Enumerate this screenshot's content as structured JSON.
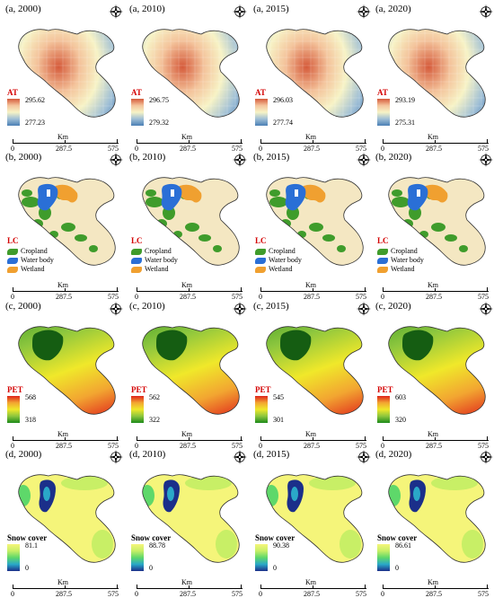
{
  "compass_icon": "north-arrow-compass",
  "scale": {
    "km_label": "Km",
    "labels": [
      "0",
      "287.5",
      "575"
    ]
  },
  "rows": [
    {
      "key": "a",
      "type": "at",
      "legend_title": "AT",
      "panels": [
        {
          "title": "(a, 2000)",
          "max": "295.62",
          "min": "277.23"
        },
        {
          "title": "(a, 2010)",
          "max": "296.75",
          "min": "279.32"
        },
        {
          "title": "(a, 2015)",
          "max": "296.03",
          "min": "277.74"
        },
        {
          "title": "(a, 2020)",
          "max": "293.19",
          "min": "275.31"
        }
      ]
    },
    {
      "key": "b",
      "type": "lc",
      "legend_title": "LC",
      "classes": [
        {
          "label": "Cropland",
          "color": "#3f9c2b"
        },
        {
          "label": "Water body",
          "color": "#2a6fd6"
        },
        {
          "label": "Wetland",
          "color": "#f0a030"
        }
      ],
      "panels": [
        {
          "title": "(b, 2000)"
        },
        {
          "title": "(b, 2010)"
        },
        {
          "title": "(b, 2015)"
        },
        {
          "title": "(b, 2020)"
        }
      ]
    },
    {
      "key": "c",
      "type": "pet",
      "legend_title": "PET",
      "panels": [
        {
          "title": "(c, 2000)",
          "max": "568",
          "min": "318"
        },
        {
          "title": "(c, 2010)",
          "max": "562",
          "min": "322"
        },
        {
          "title": "(c, 2015)",
          "max": "545",
          "min": "301"
        },
        {
          "title": "(c, 2020)",
          "max": "603",
          "min": "320"
        }
      ]
    },
    {
      "key": "d",
      "type": "snow",
      "legend_title": "Snow cover",
      "panels": [
        {
          "title": "(d, 2000)",
          "max": "81.1",
          "min": "0"
        },
        {
          "title": "(d, 2010)",
          "max": "88.78",
          "min": "0"
        },
        {
          "title": "(d, 2015)",
          "max": "90.38",
          "min": "0"
        },
        {
          "title": "(d, 2020)",
          "max": "86.61",
          "min": "0"
        }
      ]
    }
  ],
  "colors": {
    "at": [
      "#d55a3a",
      "#f4c49c",
      "#f7f3c6",
      "#9fbfd6",
      "#4a7fb5"
    ],
    "lc_background": "#f4e7c2",
    "pet": [
      "#e0231b",
      "#f2a531",
      "#f0e82a",
      "#8cc63e",
      "#1d8a1a"
    ],
    "snow": [
      "#f5f57a",
      "#c8ef66",
      "#5ed86a",
      "#2aa8c8",
      "#1b2f8a"
    ]
  }
}
